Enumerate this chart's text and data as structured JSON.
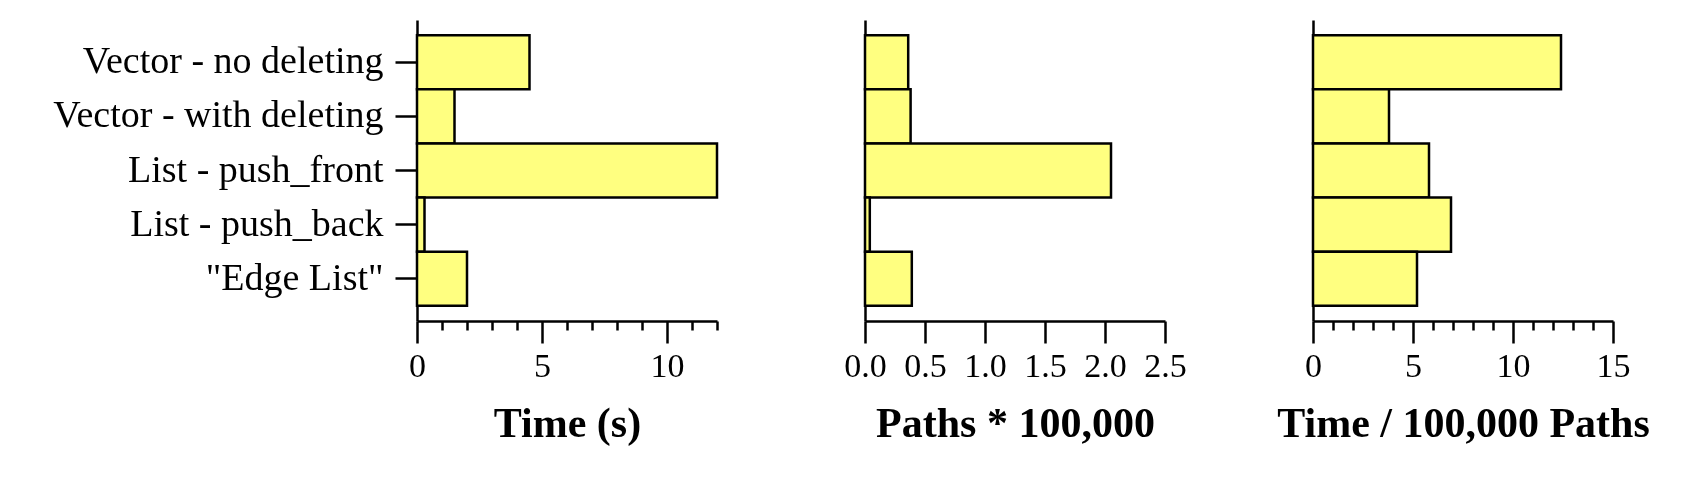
{
  "chart_data": [
    {
      "type": "bar",
      "orientation": "horizontal",
      "categories": [
        "Vector - no deleting",
        "Vector - with deleting",
        "List - push_front",
        "List - push_back",
        "\"Edge List\""
      ],
      "values": [
        4.5,
        1.5,
        12.0,
        0.3,
        2.0
      ],
      "color": "#ffff80",
      "xlabel": "Time (s)",
      "xlim": [
        0,
        12
      ],
      "xticks": [
        0,
        {
          "value": 1,
          "label": null
        },
        {
          "value": 2,
          "label": null
        },
        {
          "value": 3,
          "label": null
        },
        {
          "value": 4,
          "label": null
        },
        5,
        {
          "value": 6,
          "label": null
        },
        {
          "value": 7,
          "label": null
        },
        {
          "value": 8,
          "label": null
        },
        {
          "value": 9,
          "label": null
        },
        10,
        {
          "value": 11,
          "label": null
        },
        {
          "value": 12,
          "label": null
        }
      ]
    },
    {
      "type": "bar",
      "orientation": "horizontal",
      "categories": [
        null,
        null,
        null,
        null,
        null
      ],
      "values": [
        0.36,
        0.38,
        2.05,
        0.04,
        0.39
      ],
      "color": "#ffff80",
      "xlabel": "Paths * 100,000",
      "xlim": [
        0,
        2.5
      ],
      "xticks": [
        {
          "value": 0,
          "label": "0.0"
        },
        0.5,
        {
          "value": 1,
          "label": "1.0"
        },
        1.5,
        {
          "value": 2,
          "label": "2.0"
        },
        2.5
      ]
    },
    {
      "type": "bar",
      "orientation": "horizontal",
      "categories": [
        null,
        null,
        null,
        null,
        null
      ],
      "values": [
        12.4,
        3.8,
        5.8,
        6.9,
        5.2
      ],
      "color": "#ffff80",
      "xlabel": "Time / 100,000 Paths",
      "xlim": [
        0,
        15
      ],
      "xticks": [
        0,
        {
          "value": 1,
          "label": null
        },
        {
          "value": 2,
          "label": null
        },
        {
          "value": 3,
          "label": null
        },
        {
          "value": 4,
          "label": null
        },
        5,
        {
          "value": 6,
          "label": null
        },
        {
          "value": 7,
          "label": null
        },
        {
          "value": 8,
          "label": null
        },
        {
          "value": 9,
          "label": null
        },
        10,
        {
          "value": 11,
          "label": null
        },
        {
          "value": 12,
          "label": null
        },
        {
          "value": 13,
          "label": null
        },
        {
          "value": 14,
          "label": null
        },
        15
      ]
    }
  ]
}
